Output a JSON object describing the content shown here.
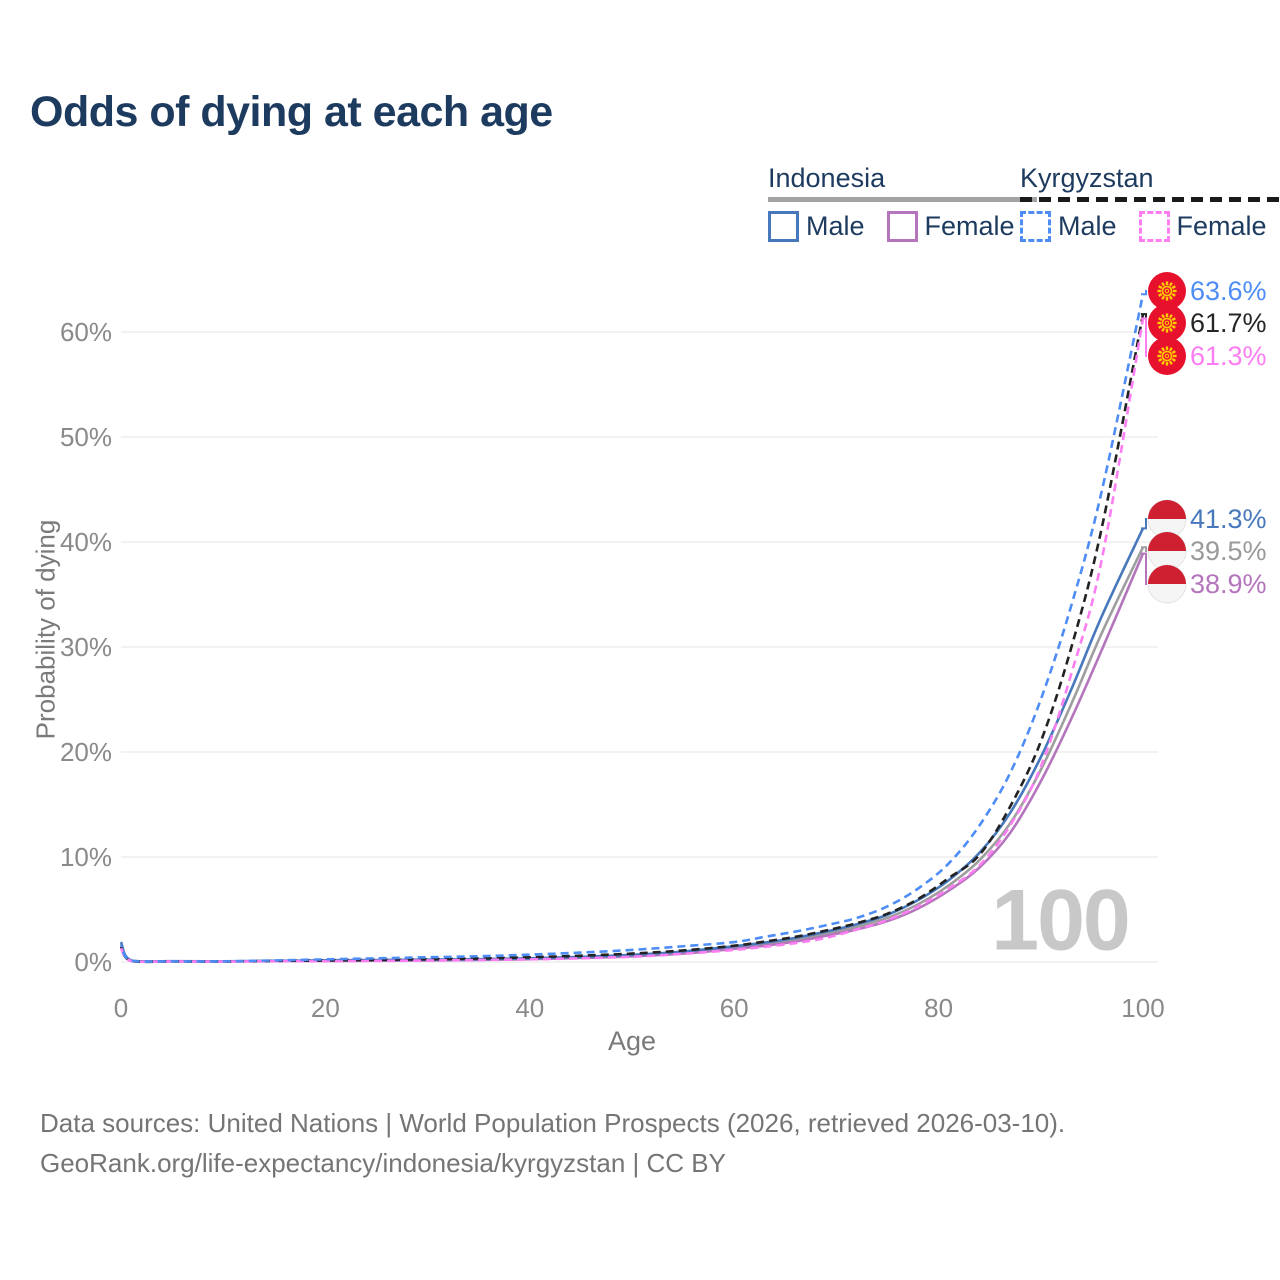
{
  "title": "Odds of dying at each age",
  "watermark_age": "100",
  "legend": {
    "groups": [
      {
        "id": "indonesia",
        "label": "Indonesia",
        "line_style": "solid",
        "underline_color": "#a3a3a3",
        "items": [
          {
            "id": "male",
            "label": "Male",
            "color": "#4878BC"
          },
          {
            "id": "female",
            "label": "Female",
            "color": "#B475BC"
          }
        ]
      },
      {
        "id": "kyrgyzstan",
        "label": "Kyrgyzstan",
        "line_style": "dashed",
        "underline_color": "#1a1a1a",
        "items": [
          {
            "id": "male",
            "label": "Male",
            "color": "#4E8DF5"
          },
          {
            "id": "female",
            "label": "Female",
            "color": "#FC7EF2"
          }
        ]
      }
    ]
  },
  "chart_data": {
    "type": "line",
    "title": "Odds of dying at each age",
    "xlabel": "Age",
    "ylabel": "Probability of dying",
    "x_ticks": [
      0,
      20,
      40,
      60,
      80,
      100
    ],
    "y_ticks": [
      {
        "value": 0,
        "label": "0%"
      },
      {
        "value": 10,
        "label": "10%"
      },
      {
        "value": 20,
        "label": "20%"
      },
      {
        "value": 30,
        "label": "30%"
      },
      {
        "value": 40,
        "label": "40%"
      },
      {
        "value": 50,
        "label": "50%"
      },
      {
        "value": 60,
        "label": "60%"
      }
    ],
    "xlim": [
      0,
      100
    ],
    "ylim_pct": [
      0,
      65
    ],
    "grid": "horizontal",
    "legend_position": "top-right",
    "ages": [
      0,
      1,
      5,
      10,
      15,
      20,
      25,
      30,
      35,
      40,
      45,
      50,
      55,
      60,
      63,
      66,
      69,
      72,
      75,
      78,
      81,
      84,
      87,
      90,
      93,
      96,
      100
    ],
    "series": [
      {
        "id": "indonesia-both",
        "name": "Indonesia Both sexes",
        "color": "#9E9E9E",
        "dash": "solid",
        "values_pct": [
          1.7,
          0.13,
          0.07,
          0.06,
          0.1,
          0.13,
          0.16,
          0.19,
          0.23,
          0.31,
          0.43,
          0.61,
          0.9,
          1.38,
          1.7,
          2.1,
          2.7,
          3.35,
          4.2,
          5.5,
          7.3,
          9.7,
          13.2,
          18.3,
          24.6,
          31.4,
          39.5
        ],
        "end_label": {
          "text": "39.5%",
          "value_pct": 39.5,
          "flag": "indonesia",
          "color": "#9A9A9A"
        }
      },
      {
        "id": "indonesia-female",
        "name": "Indonesia Female",
        "color": "#B475BC",
        "dash": "solid",
        "values_pct": [
          1.5,
          0.11,
          0.06,
          0.05,
          0.08,
          0.1,
          0.12,
          0.15,
          0.19,
          0.27,
          0.38,
          0.54,
          0.8,
          1.25,
          1.55,
          1.95,
          2.5,
          3.1,
          3.9,
          5.1,
          6.8,
          9.0,
          12.3,
          17.2,
          23.2,
          29.8,
          38.9
        ],
        "end_label": {
          "text": "38.9%",
          "value_pct": 38.9,
          "flag": "indonesia",
          "color": "#B475BC"
        }
      },
      {
        "id": "indonesia-male",
        "name": "Indonesia Male",
        "color": "#4878BC",
        "dash": "solid",
        "values_pct": [
          1.9,
          0.15,
          0.08,
          0.07,
          0.11,
          0.16,
          0.19,
          0.22,
          0.27,
          0.35,
          0.48,
          0.68,
          1.0,
          1.5,
          1.85,
          2.3,
          2.9,
          3.6,
          4.5,
          5.9,
          7.8,
          10.4,
          14.2,
          19.5,
          26.0,
          33.0,
          41.3
        ],
        "end_label": {
          "text": "41.3%",
          "value_pct": 41.3,
          "flag": "indonesia",
          "color": "#4878BC"
        }
      },
      {
        "id": "kyrgyzstan-both",
        "name": "Kyrgyzstan Both sexes",
        "color": "#222222",
        "dash": "dashed",
        "values_pct": [
          1.45,
          0.1,
          0.05,
          0.05,
          0.11,
          0.15,
          0.2,
          0.26,
          0.33,
          0.45,
          0.6,
          0.8,
          1.1,
          1.55,
          1.95,
          2.4,
          3.0,
          3.7,
          4.6,
          6.0,
          8.0,
          10.2,
          14.8,
          21.0,
          30.0,
          41.5,
          61.7
        ],
        "end_label": {
          "text": "61.7%",
          "value_pct": 61.7,
          "flag": "kyrgyzstan",
          "color": "#262626"
        }
      },
      {
        "id": "kyrgyzstan-female",
        "name": "Kyrgyzstan Female",
        "color": "#FC7EF2",
        "dash": "dashed",
        "values_pct": [
          1.3,
          0.09,
          0.05,
          0.04,
          0.07,
          0.08,
          0.1,
          0.14,
          0.19,
          0.25,
          0.35,
          0.5,
          0.78,
          1.15,
          1.45,
          1.8,
          2.3,
          3.1,
          4.0,
          5.3,
          7.0,
          9.2,
          13.0,
          18.6,
          27.5,
          38.5,
          61.3
        ],
        "end_label": {
          "text": "61.3%",
          "value_pct": 61.3,
          "flag": "kyrgyzstan",
          "color": "#FC7EF2"
        }
      },
      {
        "id": "kyrgyzstan-male",
        "name": "Kyrgyzstan Male",
        "color": "#4E8DF5",
        "dash": "dashed",
        "values_pct": [
          1.6,
          0.12,
          0.06,
          0.06,
          0.15,
          0.25,
          0.35,
          0.45,
          0.55,
          0.7,
          0.9,
          1.15,
          1.5,
          1.9,
          2.4,
          2.9,
          3.5,
          4.2,
          5.3,
          7.0,
          9.4,
          13.0,
          18.0,
          25.0,
          34.0,
          45.0,
          63.6
        ],
        "end_label": {
          "text": "63.6%",
          "value_pct": 63.6,
          "flag": "kyrgyzstan",
          "color": "#4E8DF5"
        }
      }
    ]
  },
  "flag_colors": {
    "kyrgyzstan_red": "#E8112D",
    "kyrgyzstan_yellow": "#FFCB00",
    "indonesia_red": "#CE2031",
    "indonesia_white": "#f5f5f5"
  },
  "footer": {
    "line1": "Data sources: United Nations | World Population Prospects (2026, retrieved 2026-03-10).",
    "line2": "GeoRank.org/life-expectancy/indonesia/kyrgyzstan | CC BY"
  }
}
